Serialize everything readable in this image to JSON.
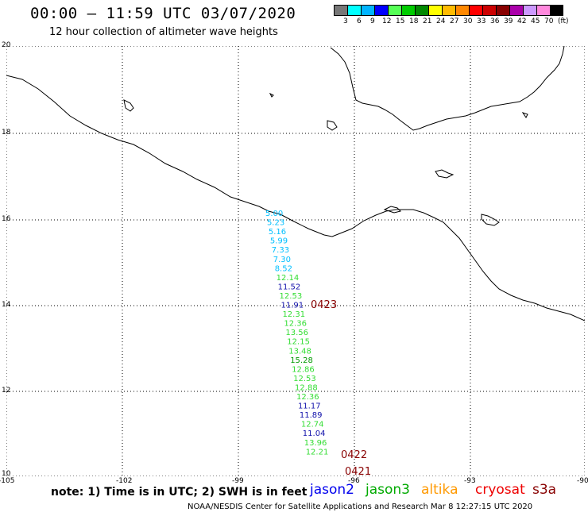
{
  "header": {
    "title": "00:00 – 11:59 UTC 03/07/2020",
    "subtitle": "12 hour collection of altimeter wave heights"
  },
  "scale": {
    "colors": [
      "#777777",
      "#00ffff",
      "#00b4ff",
      "#0000ff",
      "#55ff55",
      "#00cc00",
      "#008800",
      "#ffff00",
      "#ffbb00",
      "#ff8800",
      "#ff0000",
      "#cc0000",
      "#880000",
      "#aa00aa",
      "#cc99ff",
      "#ff88dd",
      "#000000"
    ],
    "labels": [
      "3",
      "6",
      "9",
      "12",
      "15",
      "18",
      "21",
      "24",
      "27",
      "30",
      "33",
      "36",
      "39",
      "42",
      "45",
      "70",
      "(ft)"
    ]
  },
  "axes": {
    "lon_labels": [
      "-105",
      "-102",
      "-99",
      "-96",
      "-93",
      "-90"
    ],
    "lat_labels": [
      "20",
      "18",
      "16",
      "14",
      "12",
      "10"
    ]
  },
  "track": {
    "points": [
      {
        "v": "5.00",
        "c": "#00bfff"
      },
      {
        "v": "5.23",
        "c": "#00bfff"
      },
      {
        "v": "5.16",
        "c": "#00bfff"
      },
      {
        "v": "5.99",
        "c": "#00bfff"
      },
      {
        "v": "7.33",
        "c": "#00bfff"
      },
      {
        "v": "7.30",
        "c": "#00bfff"
      },
      {
        "v": "8.52",
        "c": "#00bfff"
      },
      {
        "v": "12.14",
        "c": "#33dd33"
      },
      {
        "v": "11.52",
        "c": "#1010aa"
      },
      {
        "v": "12.53",
        "c": "#33dd33"
      },
      {
        "v": "11.91",
        "c": "#1010aa"
      },
      {
        "v": "12.31",
        "c": "#33dd33"
      },
      {
        "v": "12.36",
        "c": "#33dd33"
      },
      {
        "v": "13.56",
        "c": "#33dd33"
      },
      {
        "v": "12.15",
        "c": "#33dd33"
      },
      {
        "v": "13.48",
        "c": "#33dd33"
      },
      {
        "v": "15.28",
        "c": "#009900"
      },
      {
        "v": "12.86",
        "c": "#33dd33"
      },
      {
        "v": "12.53",
        "c": "#33dd33"
      },
      {
        "v": "12.88",
        "c": "#33dd33"
      },
      {
        "v": "12.36",
        "c": "#33dd33"
      },
      {
        "v": "11.17",
        "c": "#1010aa"
      },
      {
        "v": "11.89",
        "c": "#1010aa"
      },
      {
        "v": "12.74",
        "c": "#33dd33"
      },
      {
        "v": "11.04",
        "c": "#1010aa"
      },
      {
        "v": "13.96",
        "c": "#33dd33"
      },
      {
        "v": "12.21",
        "c": "#33dd33"
      }
    ],
    "time_labels": [
      "0423",
      "0422",
      "0421"
    ],
    "time_color": "#880000"
  },
  "note": "note:  1) Time is in UTC;  2) SWH is in feet",
  "satellites": [
    {
      "name": "jason2",
      "color": "#0000ee"
    },
    {
      "name": "jason3",
      "color": "#00aa00"
    },
    {
      "name": "altika",
      "color": "#ff9900"
    },
    {
      "name": "cryosat",
      "color": "#ee0000"
    },
    {
      "name": "s3a",
      "color": "#880000"
    }
  ],
  "footer": "NOAA/NESDIS Center for Satellite Applications and Research    Mar  8 12:27:15 UTC 2020"
}
